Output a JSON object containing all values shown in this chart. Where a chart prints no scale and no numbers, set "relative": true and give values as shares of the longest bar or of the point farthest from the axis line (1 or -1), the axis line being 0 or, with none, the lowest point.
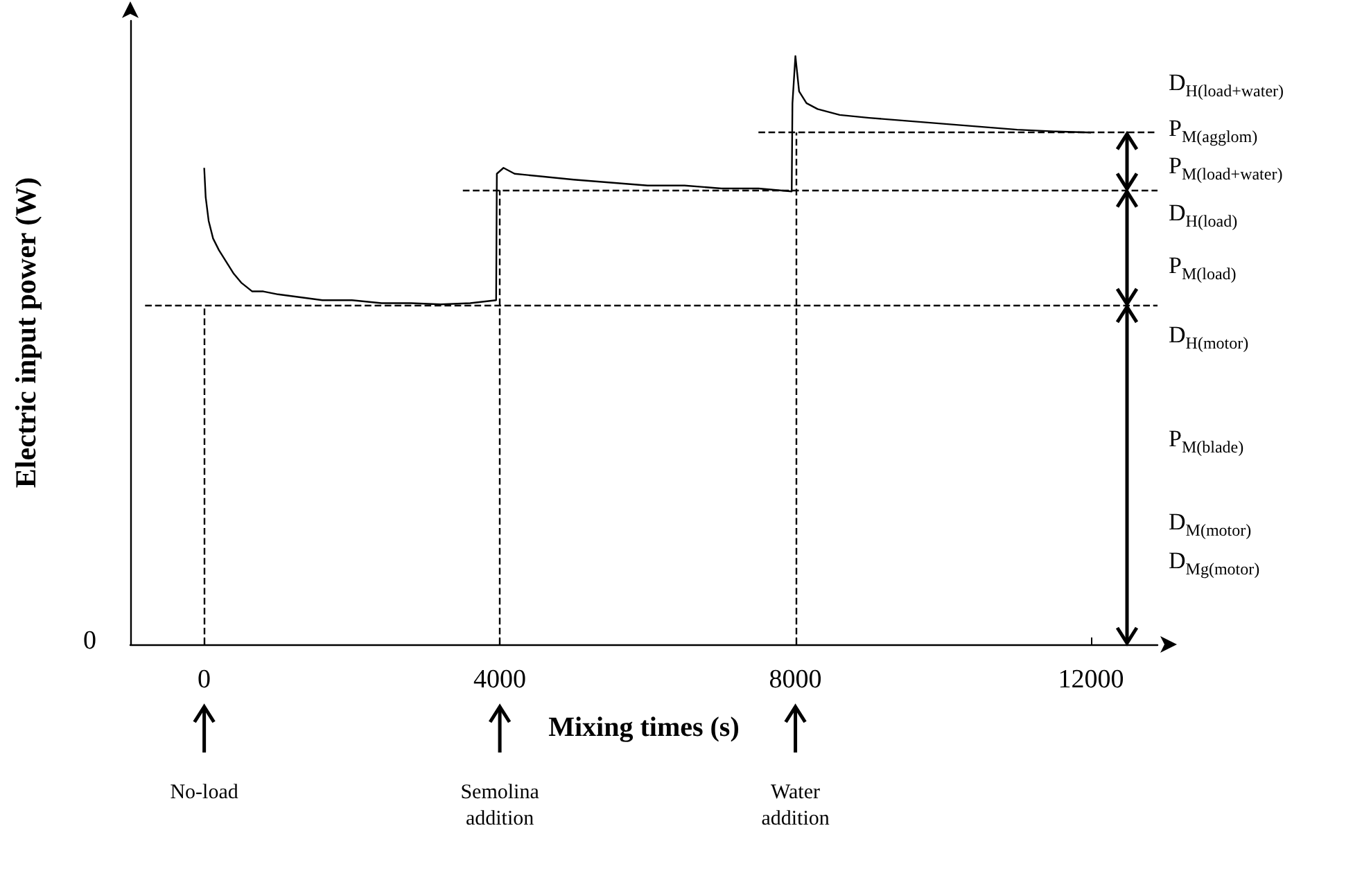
{
  "chart_data": {
    "type": "line",
    "relative": true,
    "xlabel": "Mixing times (s)",
    "ylabel": "Electric input power (W)",
    "xlim": [
      -1000,
      12900
    ],
    "xticks": [
      0,
      4000,
      8000,
      12000
    ],
    "grid": false,
    "marker": "none",
    "line_style": "solid",
    "series": [
      {
        "color": "#000000",
        "x": [
          0,
          20,
          60,
          120,
          200,
          300,
          400,
          500,
          650,
          800,
          1000,
          1300,
          1600,
          2000,
          2400,
          2800,
          3200,
          3600,
          3950,
          3960,
          4050,
          4200,
          4600,
          5000,
          5500,
          6000,
          6500,
          7000,
          7500,
          7950,
          7960,
          8000,
          8050,
          8150,
          8300,
          8600,
          9000,
          9500,
          10000,
          10500,
          11000,
          11500,
          12000
        ],
        "values": [
          0.81,
          0.76,
          0.72,
          0.69,
          0.67,
          0.65,
          0.63,
          0.615,
          0.6,
          0.6,
          0.595,
          0.59,
          0.585,
          0.585,
          0.58,
          0.58,
          0.578,
          0.58,
          0.585,
          0.8,
          0.81,
          0.8,
          0.795,
          0.79,
          0.785,
          0.78,
          0.78,
          0.775,
          0.775,
          0.77,
          0.92,
          1.0,
          0.94,
          0.92,
          0.91,
          0.9,
          0.895,
          0.89,
          0.885,
          0.88,
          0.875,
          0.872,
          0.87
        ]
      }
    ],
    "ref_lines": [
      {
        "axis": "y",
        "value": 0.576,
        "line_style": "dashed"
      },
      {
        "axis": "y",
        "value": 0.772,
        "line_style": "dashed"
      },
      {
        "axis": "y",
        "value": 0.87,
        "line_style": "dashed"
      },
      {
        "axis": "x",
        "value": 0,
        "line_style": "dashed"
      },
      {
        "axis": "x",
        "value": 4000,
        "line_style": "dashed"
      },
      {
        "axis": "x",
        "value": 8000,
        "line_style": "dashed"
      }
    ],
    "annotations": [
      "0",
      "D$_{H(load+water)}$",
      "P$_{M(agglom)}$",
      "P$_{M(load+water)}$",
      "D$_{H(load)}$",
      "P$_{M(load)}$",
      "D$_{H(motor)}$",
      "P$_{M(blade)}$",
      "D$_{M(motor)}$",
      "D$_{Mg(motor)}$",
      "No-load",
      "Semolina\naddition",
      "Water\naddition"
    ]
  }
}
